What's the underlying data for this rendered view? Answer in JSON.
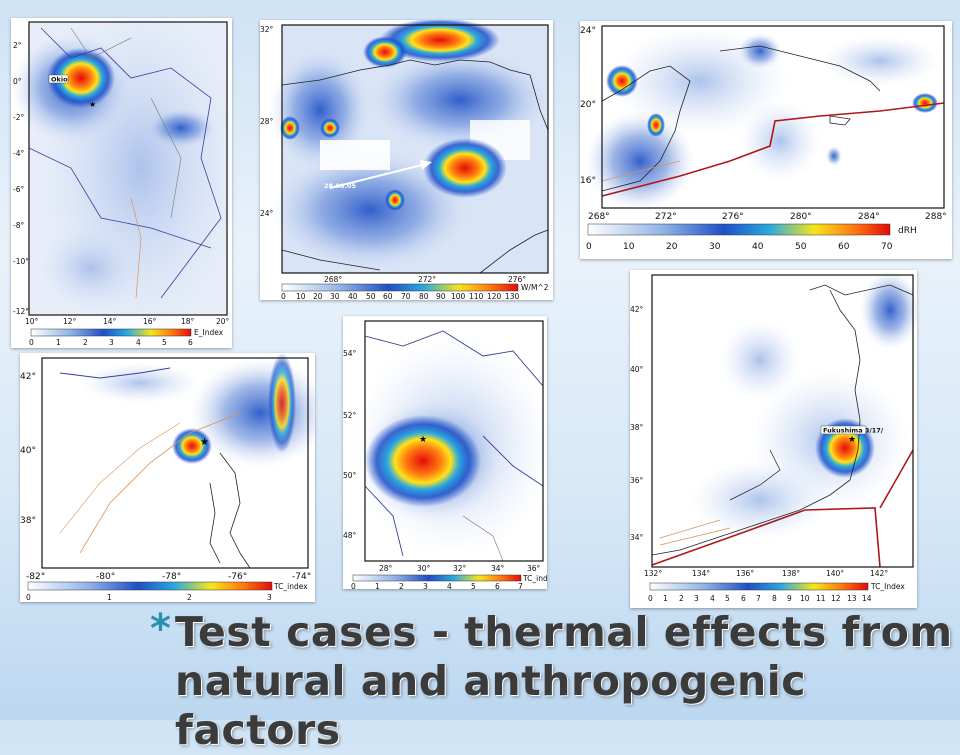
{
  "slide": {
    "bullet": "*",
    "title_line1": "Test cases - thermal effects from",
    "title_line2": "natural and anthropogenic factors"
  },
  "maps": [
    {
      "id": "congo",
      "point_label": "Okio",
      "x_ticks": [
        "10°",
        "12°",
        "14°",
        "16°",
        "18°",
        "20°"
      ],
      "y_ticks": [
        "2°",
        "0°",
        "-2°",
        "-4°",
        "-6°",
        "-8°",
        "-10°",
        "-12°"
      ],
      "colorbar_ticks": [
        "0",
        "1",
        "2",
        "3",
        "4",
        "5",
        "6"
      ],
      "colorbar_unit": "E_Index"
    },
    {
      "id": "gulf-of-mexico",
      "point_label": "28.08.05",
      "x_ticks": [
        "268°",
        "272°",
        "276°"
      ],
      "y_ticks": [
        "32°",
        "28°",
        "24°"
      ],
      "colorbar_ticks": [
        "0",
        "10",
        "20",
        "30",
        "40",
        "50",
        "60",
        "70",
        "80",
        "90",
        "100",
        "110",
        "120",
        "130"
      ],
      "colorbar_unit": "W/M^2"
    },
    {
      "id": "caribbean",
      "x_ticks": [
        "268°",
        "272°",
        "276°",
        "280°",
        "284°",
        "288°"
      ],
      "y_ticks": [
        "24°",
        "20°",
        "16°"
      ],
      "colorbar_ticks": [
        "0",
        "10",
        "20",
        "30",
        "40",
        "50",
        "60",
        "70"
      ],
      "colorbar_unit": "dRH"
    },
    {
      "id": "us-east",
      "x_ticks": [
        "-82°",
        "-80°",
        "-78°",
        "-76°",
        "-74°"
      ],
      "y_ticks": [
        "42°",
        "40°",
        "38°"
      ],
      "colorbar_ticks": [
        "0",
        "1",
        "2",
        "3"
      ],
      "colorbar_unit": "TC_index"
    },
    {
      "id": "ukraine",
      "x_ticks": [
        "28°",
        "30°",
        "32°",
        "34°",
        "36°"
      ],
      "y_ticks": [
        "54°",
        "52°",
        "50°",
        "48°"
      ],
      "colorbar_ticks": [
        "0",
        "1",
        "2",
        "3",
        "4",
        "5",
        "6",
        "7"
      ],
      "colorbar_unit": "TC_index"
    },
    {
      "id": "japan",
      "point_label": "Fukushima 3/17/",
      "x_ticks": [
        "132°",
        "134°",
        "136°",
        "138°",
        "140°",
        "142°"
      ],
      "y_ticks": [
        "42°",
        "40°",
        "38°",
        "36°",
        "34°"
      ],
      "colorbar_ticks": [
        "0",
        "1",
        "2",
        "3",
        "4",
        "5",
        "6",
        "7",
        "8",
        "9",
        "10",
        "11",
        "12",
        "13",
        "14"
      ],
      "colorbar_unit": "TC_Index"
    }
  ],
  "colors": {
    "scale": [
      "#ffffff",
      "#2a55c8",
      "#2e9fe0",
      "#ffe21a",
      "#ff7a10",
      "#e01010"
    ],
    "border": "#3a3f9a",
    "fault": "#d8925a",
    "plate": "#b01818"
  }
}
